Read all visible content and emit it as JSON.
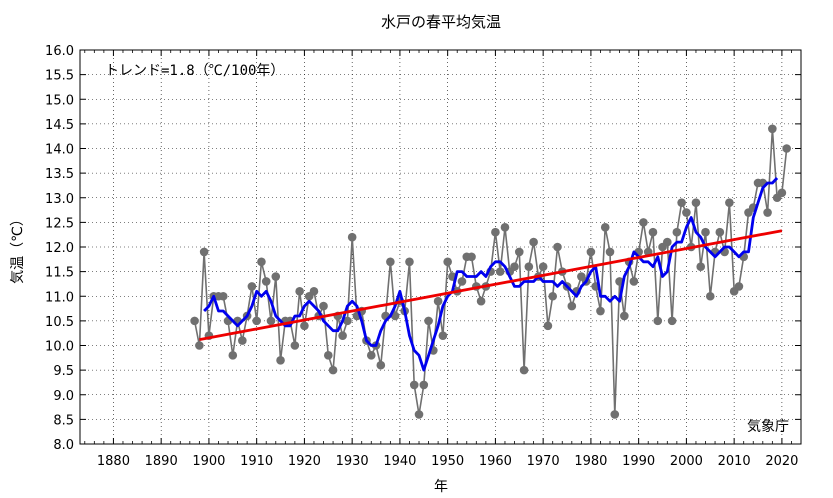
{
  "chart_data": {
    "type": "line",
    "title": "水戸の春平均気温",
    "xlabel": "年",
    "ylabel": "気温（℃）",
    "trend_label": "トレンド=1.8（℃/100年）",
    "credit": "気象庁",
    "xlim": [
      1873,
      2024
    ],
    "ylim": [
      8.0,
      16.0
    ],
    "x_ticks": [
      1880,
      1890,
      1900,
      1910,
      1920,
      1930,
      1940,
      1950,
      1960,
      1970,
      1980,
      1990,
      2000,
      2010,
      2020
    ],
    "y_ticks": [
      8.0,
      8.5,
      9.0,
      9.5,
      10.0,
      10.5,
      11.0,
      11.5,
      12.0,
      12.5,
      13.0,
      13.5,
      14.0,
      14.5,
      15.0,
      15.5,
      16.0
    ],
    "grid": true,
    "colors": {
      "annual": "#707070",
      "moving_average": "#0000ee",
      "trend": "#ee0000"
    },
    "series": [
      {
        "role": "annual",
        "x": [
          1897,
          1898,
          1899,
          1900,
          1901,
          1902,
          1903,
          1904,
          1905,
          1906,
          1907,
          1908,
          1909,
          1910,
          1911,
          1912,
          1913,
          1914,
          1915,
          1916,
          1917,
          1918,
          1919,
          1920,
          1921,
          1922,
          1923,
          1924,
          1925,
          1926,
          1927,
          1928,
          1929,
          1930,
          1931,
          1932,
          1933,
          1934,
          1935,
          1936,
          1937,
          1938,
          1939,
          1940,
          1941,
          1942,
          1943,
          1944,
          1945,
          1946,
          1947,
          1948,
          1949,
          1950,
          1951,
          1952,
          1953,
          1954,
          1955,
          1956,
          1957,
          1958,
          1959,
          1960,
          1961,
          1962,
          1963,
          1964,
          1965,
          1966,
          1967,
          1968,
          1969,
          1970,
          1971,
          1972,
          1973,
          1974,
          1975,
          1976,
          1977,
          1978,
          1979,
          1980,
          1981,
          1982,
          1983,
          1984,
          1985,
          1986,
          1987,
          1988,
          1989,
          1990,
          1991,
          1992,
          1993,
          1994,
          1995,
          1996,
          1997,
          1998,
          1999,
          2000,
          2001,
          2002,
          2003,
          2004,
          2005,
          2006,
          2007,
          2008,
          2009,
          2010,
          2011,
          2012,
          2013,
          2014,
          2015,
          2016,
          2017,
          2018,
          2019,
          2020,
          2021
        ],
        "values": [
          10.5,
          10.0,
          11.9,
          10.2,
          11.0,
          11.0,
          11.0,
          10.5,
          9.8,
          10.5,
          10.1,
          10.6,
          11.2,
          10.5,
          11.7,
          11.3,
          10.5,
          11.4,
          9.7,
          10.5,
          10.5,
          10.0,
          11.1,
          10.4,
          11.0,
          11.1,
          10.6,
          10.8,
          9.8,
          9.5,
          10.6,
          10.2,
          10.5,
          12.2,
          10.6,
          10.7,
          10.1,
          9.8,
          10.0,
          9.6,
          10.6,
          11.7,
          10.6,
          10.9,
          10.7,
          11.7,
          9.2,
          8.6,
          9.2,
          10.5,
          9.9,
          10.9,
          10.2,
          11.7,
          11.4,
          11.1,
          11.3,
          11.8,
          11.8,
          11.2,
          10.9,
          11.2,
          11.5,
          12.3,
          11.5,
          12.4,
          11.5,
          11.6,
          11.9,
          9.5,
          11.6,
          12.1,
          11.4,
          11.6,
          10.4,
          11.0,
          12.0,
          11.5,
          11.2,
          10.8,
          11.1,
          11.4,
          11.3,
          11.9,
          11.2,
          10.7,
          12.4,
          11.9,
          8.6,
          11.3,
          10.6,
          11.7,
          11.3,
          11.9,
          12.5,
          11.9,
          12.3,
          10.5,
          12.0,
          12.1,
          10.5,
          12.3,
          12.9,
          12.7,
          12.0,
          12.9,
          11.6,
          12.3,
          11.0,
          11.9,
          12.3,
          11.9,
          12.9,
          11.1,
          11.2,
          11.8,
          12.7,
          12.8,
          13.3,
          13.3,
          12.7,
          14.4,
          13.0,
          13.1,
          14.0
        ]
      },
      {
        "role": "moving_average",
        "x": [
          1899,
          1900,
          1901,
          1902,
          1903,
          1904,
          1905,
          1906,
          1907,
          1908,
          1909,
          1910,
          1911,
          1912,
          1913,
          1914,
          1915,
          1916,
          1917,
          1918,
          1919,
          1920,
          1921,
          1922,
          1923,
          1924,
          1925,
          1926,
          1927,
          1928,
          1929,
          1930,
          1931,
          1932,
          1933,
          1934,
          1935,
          1936,
          1937,
          1938,
          1939,
          1940,
          1941,
          1942,
          1943,
          1944,
          1945,
          1946,
          1947,
          1948,
          1949,
          1950,
          1951,
          1952,
          1953,
          1954,
          1955,
          1956,
          1957,
          1958,
          1959,
          1960,
          1961,
          1962,
          1963,
          1964,
          1965,
          1966,
          1967,
          1968,
          1969,
          1970,
          1971,
          1972,
          1973,
          1974,
          1975,
          1976,
          1977,
          1978,
          1979,
          1980,
          1981,
          1982,
          1983,
          1984,
          1985,
          1986,
          1987,
          1988,
          1989,
          1990,
          1991,
          1992,
          1993,
          1994,
          1995,
          1996,
          1997,
          1998,
          1999,
          2000,
          2001,
          2002,
          2003,
          2004,
          2005,
          2006,
          2007,
          2008,
          2009,
          2010,
          2011,
          2012,
          2013,
          2014,
          2015,
          2016,
          2017,
          2018,
          2019
        ],
        "values": [
          10.7,
          10.8,
          11.0,
          10.7,
          10.7,
          10.6,
          10.5,
          10.4,
          10.5,
          10.6,
          10.8,
          11.1,
          11.0,
          11.1,
          10.9,
          10.6,
          10.5,
          10.4,
          10.4,
          10.6,
          10.6,
          10.8,
          10.9,
          10.8,
          10.7,
          10.5,
          10.4,
          10.3,
          10.3,
          10.5,
          10.8,
          10.9,
          10.8,
          10.5,
          10.1,
          10.0,
          10.0,
          10.3,
          10.5,
          10.6,
          10.8,
          11.1,
          10.7,
          10.2,
          9.9,
          9.8,
          9.5,
          9.8,
          10.1,
          10.4,
          10.8,
          11.0,
          11.1,
          11.5,
          11.5,
          11.4,
          11.4,
          11.4,
          11.5,
          11.4,
          11.6,
          11.7,
          11.7,
          11.6,
          11.4,
          11.2,
          11.2,
          11.3,
          11.3,
          11.3,
          11.4,
          11.3,
          11.3,
          11.3,
          11.2,
          11.3,
          11.2,
          11.1,
          11.0,
          11.2,
          11.3,
          11.5,
          11.6,
          11.0,
          11.0,
          10.9,
          11.0,
          10.9,
          11.4,
          11.6,
          11.9,
          11.8,
          11.7,
          11.7,
          11.6,
          11.8,
          11.4,
          11.5,
          12.0,
          12.1,
          12.1,
          12.4,
          12.6,
          12.3,
          12.2,
          12.0,
          11.9,
          11.8,
          11.9,
          12.0,
          12.0,
          11.9,
          11.8,
          11.9,
          11.9,
          12.6,
          12.9,
          13.2,
          13.3,
          13.3,
          13.4
        ]
      },
      {
        "role": "trend",
        "x": [
          1898,
          2020
        ],
        "values": [
          10.12,
          12.33
        ]
      }
    ]
  }
}
